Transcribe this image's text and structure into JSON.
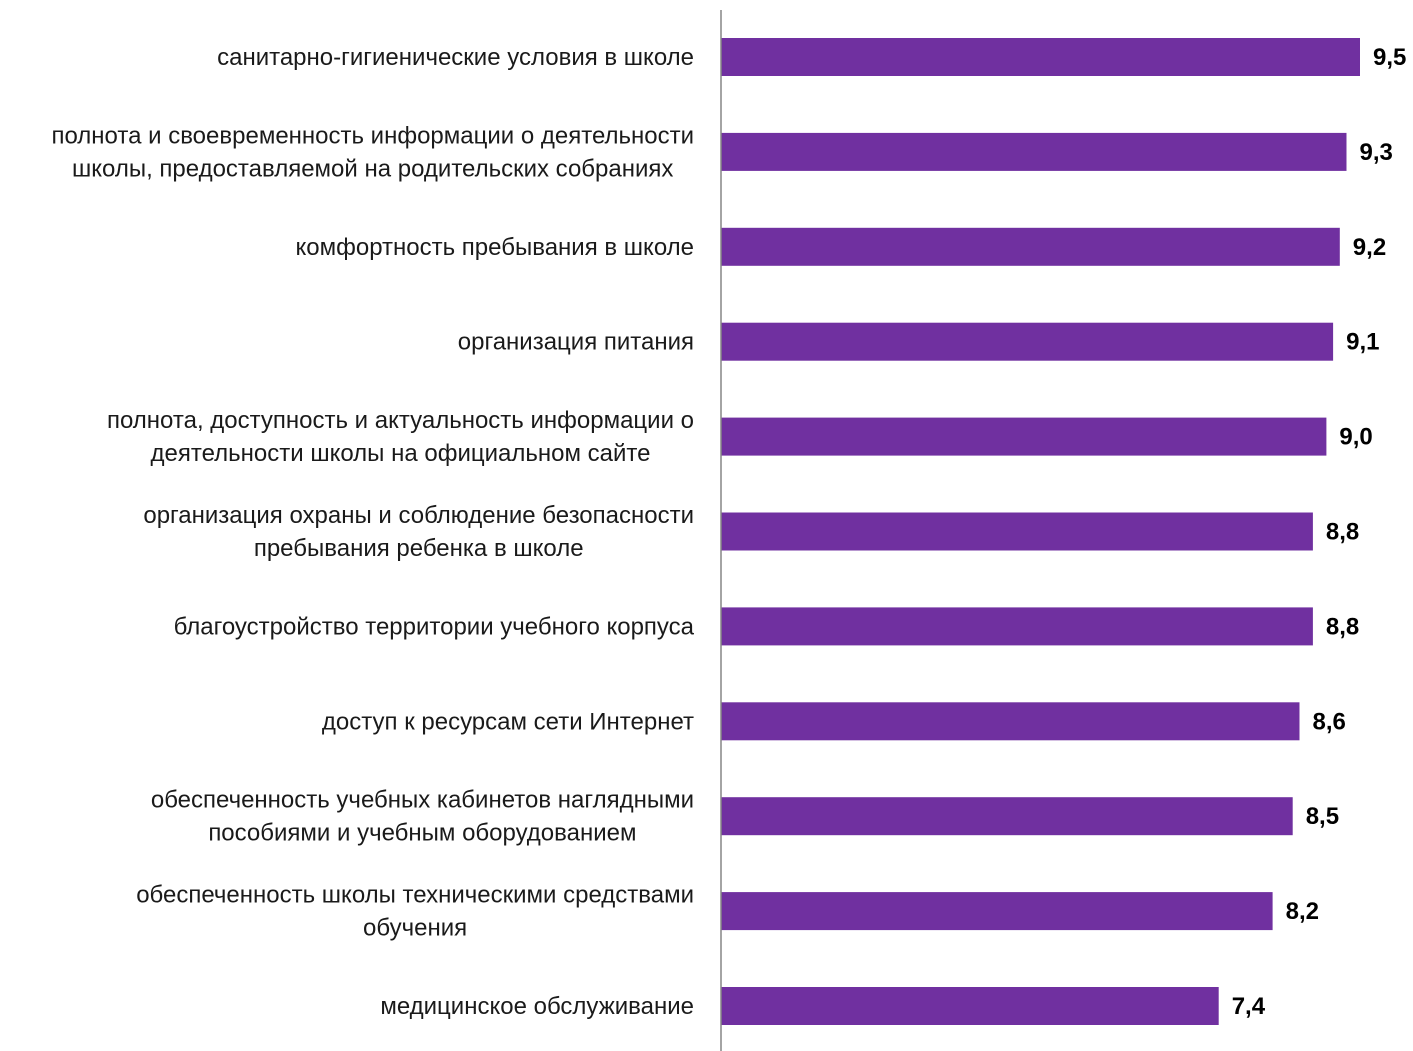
{
  "chart_data": {
    "type": "bar",
    "orientation": "horizontal",
    "categories": [
      [
        "санитарно-гигиенические условия в школе"
      ],
      [
        "полнота и своевременность информации о деятельности",
        "школы, предоставляемой на родительских собраниях"
      ],
      [
        "комфортность пребывания в школе"
      ],
      [
        "организация питания"
      ],
      [
        "полнота, доступность и актуальность информации о",
        "деятельности школы на официальном сайте"
      ],
      [
        "организация охраны и соблюдение безопасности",
        "пребывания ребенка в школе"
      ],
      [
        "благоустройство территории учебного корпуса"
      ],
      [
        "доступ к ресурсам сети Интернет"
      ],
      [
        "обеспеченность учебных кабинетов наглядными",
        "пособиями и учебным оборудованием"
      ],
      [
        "обеспеченность школы техническими средствами",
        "обучения"
      ],
      [
        "медицинское обслуживание"
      ]
    ],
    "values": [
      9.5,
      9.3,
      9.2,
      9.1,
      9.0,
      8.8,
      8.8,
      8.6,
      8.5,
      8.2,
      7.4
    ],
    "value_labels": [
      "9,5",
      "9,3",
      "9,2",
      "9,1",
      "9,0",
      "8,8",
      "8,8",
      "8,6",
      "8,5",
      "8,2",
      "7,4"
    ],
    "xlim": [
      0,
      9.5
    ],
    "bar_color": "#7030A0",
    "axis_color": "#868686",
    "grid": false,
    "legend": "none"
  }
}
